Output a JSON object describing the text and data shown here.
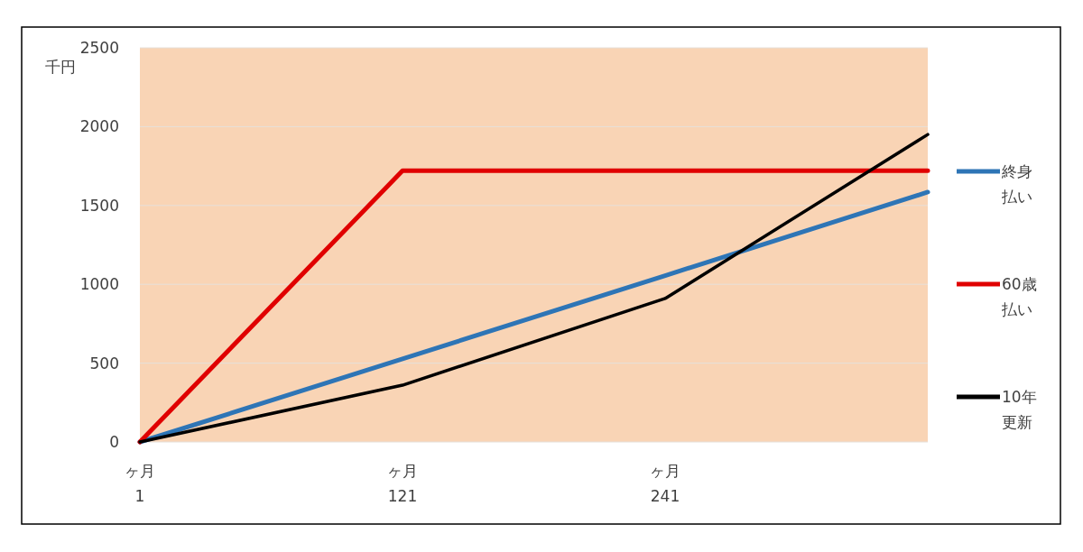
{
  "chart_data": {
    "type": "line",
    "ylabel": "千円",
    "categories": [
      "ヶ月\n1",
      "ヶ月\n121",
      "ヶ月\n241",
      null
    ],
    "ylim": [
      0,
      2500
    ],
    "yticks": [
      0,
      500,
      1000,
      1500,
      2000,
      2500
    ],
    "grid": "y",
    "legend": "right",
    "series": [
      {
        "name": "終身払い",
        "color": "#2e75b6",
        "values": [
          0,
          527,
          1055,
          1585
        ]
      },
      {
        "name": "60歳払い",
        "color": "#e00000",
        "values": [
          0,
          1720,
          1720,
          1720
        ]
      },
      {
        "name": "10年更新",
        "color": "#000000",
        "values": [
          0,
          360,
          910,
          1950
        ]
      }
    ]
  }
}
